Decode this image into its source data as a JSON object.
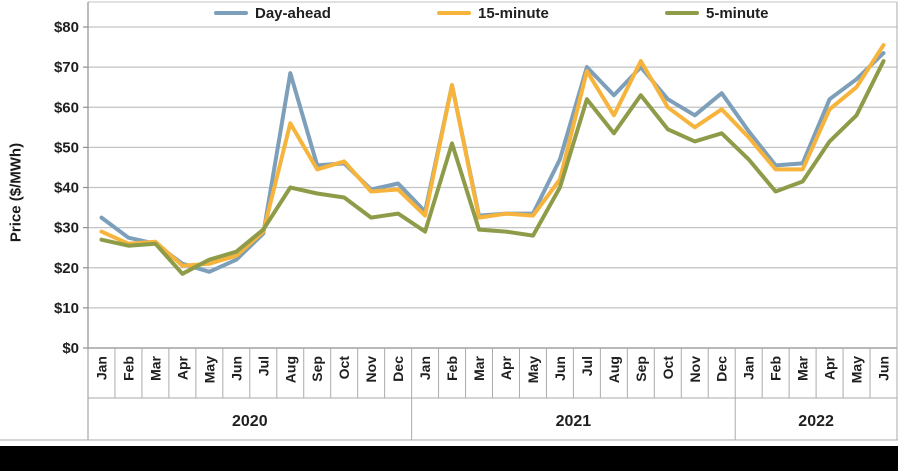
{
  "chart_data": {
    "type": "line",
    "title": "",
    "ylabel": "Price ($/MWh)",
    "ylim": [
      0,
      80
    ],
    "y_ticks": [
      "$0",
      "$10",
      "$20",
      "$30",
      "$40",
      "$50",
      "$60",
      "$70",
      "$80"
    ],
    "grid": true,
    "legend_position": "top",
    "x_labels": [
      "Jan",
      "Feb",
      "Mar",
      "Apr",
      "May",
      "Jun",
      "Jul",
      "Aug",
      "Sep",
      "Oct",
      "Nov",
      "Dec",
      "Jan",
      "Feb",
      "Mar",
      "Apr",
      "May",
      "Jun",
      "Jul",
      "Aug",
      "Sep",
      "Oct",
      "Nov",
      "Dec",
      "Jan",
      "Feb",
      "Mar",
      "Apr",
      "May",
      "Jun"
    ],
    "year_groups": [
      {
        "label": "2020",
        "months": 12
      },
      {
        "label": "2021",
        "months": 12
      },
      {
        "label": "2022",
        "months": 6
      }
    ],
    "series": [
      {
        "name": "Day-ahead",
        "color": "#7d9fba",
        "values": [
          32.5,
          27.5,
          26,
          21,
          19,
          22,
          28.5,
          68.5,
          45.5,
          46,
          39.5,
          41,
          34,
          65.5,
          33,
          33.5,
          33.5,
          47,
          70,
          63,
          70,
          62,
          58,
          63.5,
          54,
          45.5,
          46,
          62,
          67,
          73.5
        ]
      },
      {
        "name": "15-minute",
        "color": "#f6b43c",
        "values": [
          29,
          26,
          26.5,
          20.5,
          21,
          23,
          29,
          56,
          44.5,
          46.5,
          39,
          39.5,
          33,
          65.5,
          32.5,
          33.5,
          33,
          42,
          69,
          58,
          71.5,
          60,
          55,
          59.5,
          52.5,
          44.5,
          44.5,
          59.5,
          65,
          75.5
        ]
      },
      {
        "name": "5-minute",
        "color": "#8e9c49",
        "values": [
          27,
          25.5,
          26,
          18.5,
          22,
          24,
          29.5,
          40,
          38.5,
          37.5,
          32.5,
          33.5,
          29,
          51,
          29.5,
          29,
          28,
          40,
          62,
          53.5,
          63,
          54.5,
          51.5,
          53.5,
          47,
          39,
          41.5,
          51.5,
          58,
          71.5
        ]
      }
    ]
  },
  "colors": {
    "gridline": "#c3c3c3",
    "axis": "#8f8f8f",
    "separator": "#ababab",
    "text": "#1f1f1f",
    "bottom_bar": "#000000",
    "background": "#ffffff"
  }
}
